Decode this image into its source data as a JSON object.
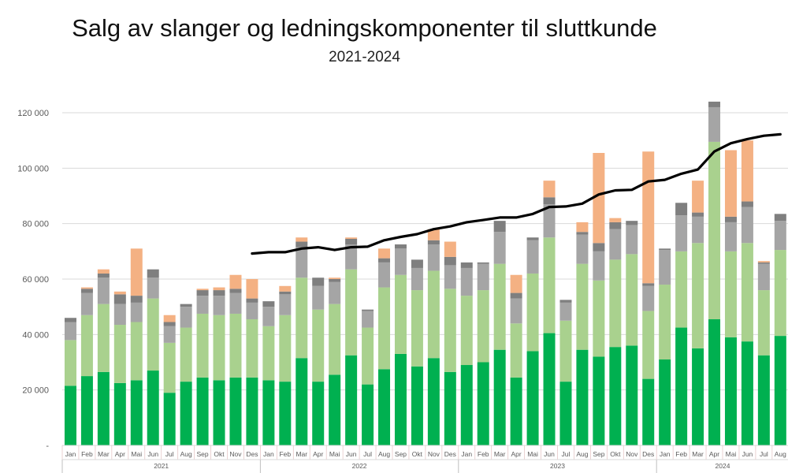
{
  "chart_data": {
    "type": "bar",
    "stacked": true,
    "title": "Salg av slanger og ledningskomponenter til sluttkunde",
    "subtitle": "2021-2024",
    "xlabel": "",
    "ylabel": "",
    "ylim": [
      0,
      120000
    ],
    "yticks": [
      0,
      20000,
      40000,
      60000,
      80000,
      100000,
      120000
    ],
    "ytick_labels": [
      "-",
      "20 000",
      "40 000",
      "60 000",
      "80 000",
      "100 000",
      "120 000"
    ],
    "grid": true,
    "legend": "none",
    "years": [
      {
        "label": "2021",
        "months": 12
      },
      {
        "label": "2022",
        "months": 12
      },
      {
        "label": "2023",
        "months": 12
      },
      {
        "label": "2024",
        "months": 8
      }
    ],
    "categories": [
      "Jan",
      "Feb",
      "Mar",
      "Apr",
      "Mai",
      "Jun",
      "Jul",
      "Aug",
      "Sep",
      "Okt",
      "Nov",
      "Des",
      "Jan",
      "Feb",
      "Mar",
      "Apr",
      "Mai",
      "Jun",
      "Jul",
      "Aug",
      "Sep",
      "Okt",
      "Nov",
      "Des",
      "Jan",
      "Feb",
      "Mar",
      "Apr",
      "Mai",
      "Jun",
      "Jul",
      "Aug",
      "Sep",
      "Okt",
      "Nov",
      "Des",
      "Jan",
      "Feb",
      "Mar",
      "Apr",
      "Mai",
      "Jun",
      "Jul",
      "Aug"
    ],
    "series": [
      {
        "color": "#00b050",
        "values": [
          21500,
          25000,
          26500,
          22500,
          23500,
          27000,
          19000,
          23000,
          24500,
          23500,
          24500,
          24500,
          23500,
          23000,
          31500,
          23000,
          25500,
          32500,
          22000,
          27500,
          33000,
          28500,
          31500,
          26500,
          29000,
          30000,
          34500,
          24500,
          34000,
          40500,
          23000,
          34500,
          32000,
          35500,
          36000,
          24000,
          31000,
          42500,
          35000,
          45500,
          39000,
          37500,
          32500,
          39500
        ]
      },
      {
        "color": "#a9d18e",
        "values": [
          16500,
          22000,
          24500,
          21000,
          21000,
          26000,
          18000,
          19500,
          23000,
          23500,
          23000,
          21000,
          19500,
          24000,
          29000,
          26000,
          25500,
          31000,
          20500,
          29500,
          28500,
          27500,
          31500,
          30000,
          25000,
          26000,
          31000,
          19500,
          28000,
          34500,
          22000,
          31000,
          27500,
          31500,
          33000,
          24500,
          27000,
          27500,
          38000,
          64000,
          31000,
          35500,
          23500,
          31000
        ]
      },
      {
        "color": "#a5a5a5",
        "values": [
          6500,
          8000,
          9500,
          7500,
          7000,
          7500,
          6000,
          7500,
          6500,
          7000,
          7500,
          6000,
          7000,
          7500,
          11000,
          8500,
          8000,
          9000,
          6000,
          9000,
          9500,
          8000,
          9500,
          8500,
          10000,
          9500,
          11500,
          9000,
          12000,
          12000,
          6500,
          10500,
          10500,
          11000,
          10500,
          9000,
          12500,
          13000,
          9500,
          12500,
          10500,
          13000,
          9500,
          10500
        ]
      },
      {
        "color": "#7f7f7f",
        "values": [
          1500,
          1500,
          1500,
          3500,
          2500,
          3000,
          1500,
          1000,
          2000,
          2000,
          1500,
          1500,
          2000,
          1000,
          2000,
          3000,
          1000,
          2000,
          500,
          1500,
          1500,
          3000,
          1500,
          3000,
          2000,
          500,
          4000,
          2000,
          1000,
          2500,
          1000,
          1000,
          3000,
          2500,
          1500,
          1000,
          500,
          4500,
          1500,
          2000,
          2000,
          2000,
          500,
          2500
        ]
      },
      {
        "color": "#f4b183",
        "values": [
          0,
          500,
          1500,
          1000,
          17000,
          0,
          2500,
          0,
          500,
          1000,
          5000,
          7000,
          0,
          2000,
          1500,
          0,
          500,
          500,
          0,
          3500,
          0,
          0,
          4000,
          5500,
          0,
          0,
          0,
          6500,
          0,
          6000,
          0,
          3500,
          32500,
          1500,
          0,
          47500,
          0,
          0,
          11500,
          0,
          24000,
          22000,
          500,
          0
        ]
      }
    ],
    "line": {
      "type": "line",
      "color": "#000000",
      "start_index": 11,
      "values": [
        69200,
        69700,
        69700,
        71000,
        71500,
        70500,
        71500,
        71700,
        74000,
        75200,
        76200,
        78000,
        79000,
        80500,
        81300,
        82200,
        82200,
        83500,
        86000,
        86200,
        87200,
        90500,
        92000,
        92200,
        95200,
        95800,
        98000,
        99500,
        106000,
        109000,
        110500,
        111700,
        112200
      ]
    }
  }
}
